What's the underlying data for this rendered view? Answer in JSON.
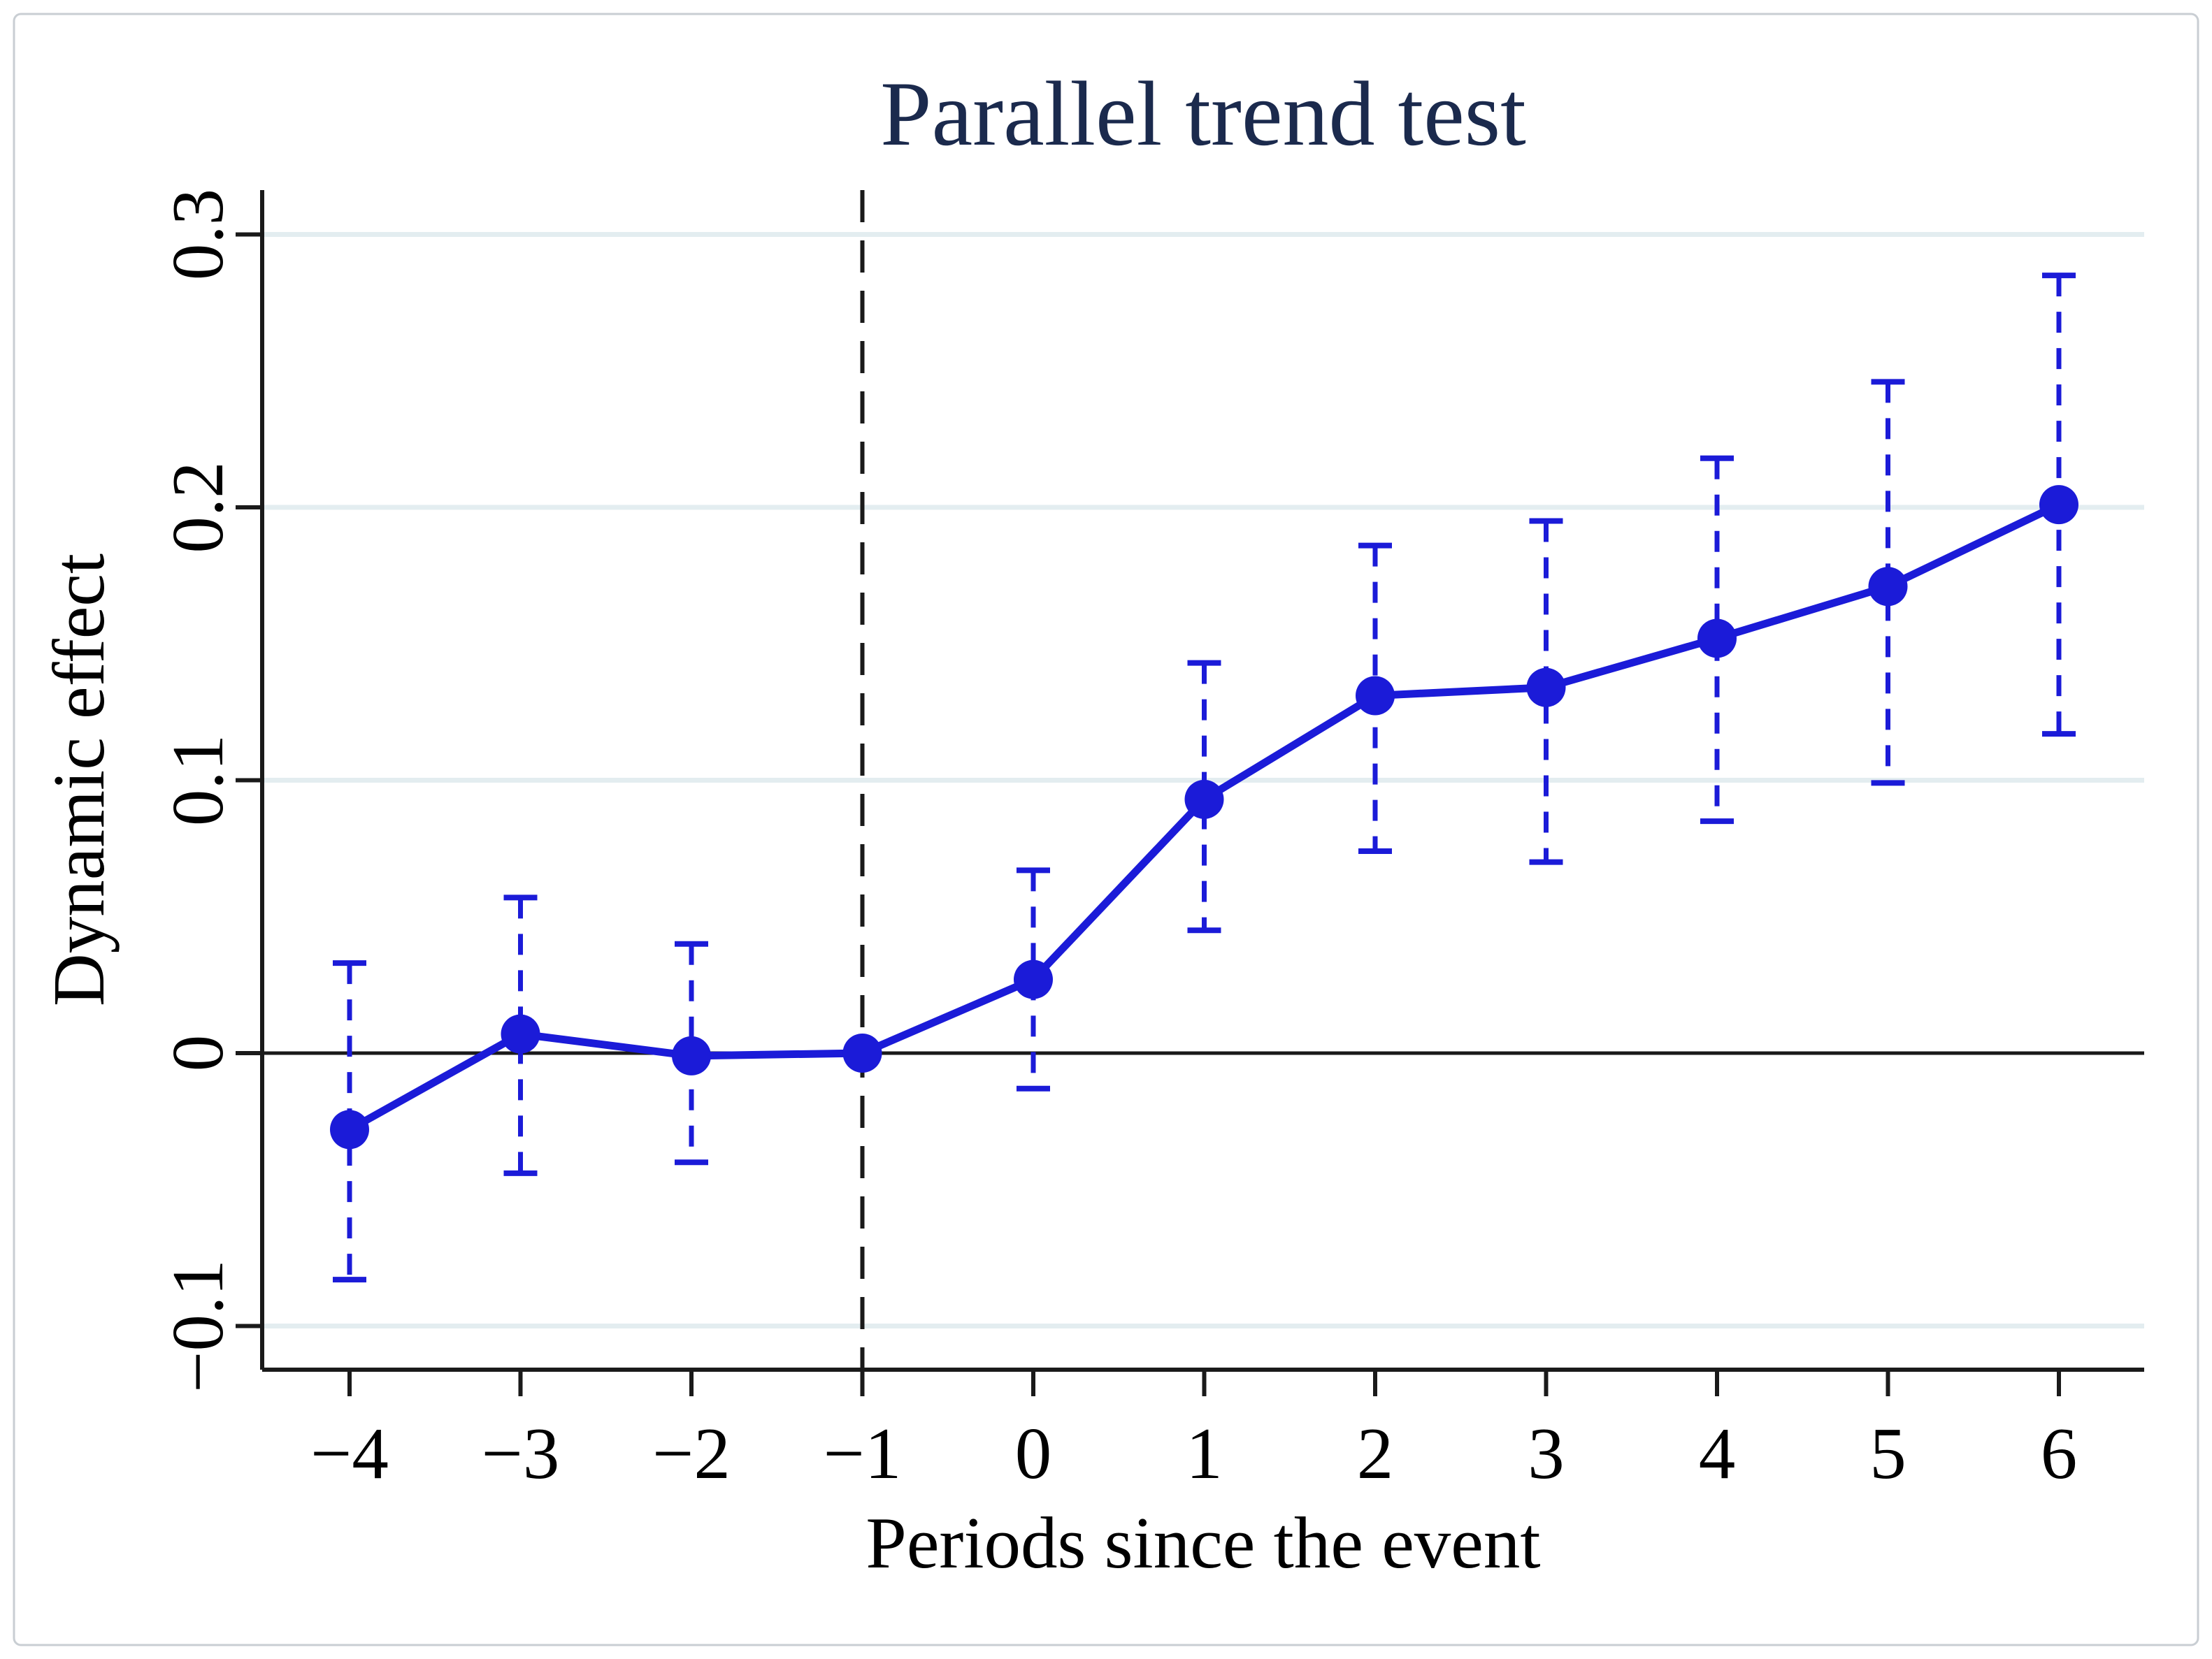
{
  "chart_data": {
    "type": "line",
    "title": "Parallel trend test",
    "xlabel": "Periods since the event",
    "ylabel": "Dynamic effect",
    "x": [
      -4,
      -3,
      -2,
      -1,
      0,
      1,
      2,
      3,
      4,
      5,
      6
    ],
    "x_tick_labels": [
      "−4",
      "−3",
      "−2",
      "−1",
      "0",
      "1",
      "2",
      "3",
      "4",
      "5",
      "6"
    ],
    "y_ticks": [
      {
        "value": 0.3,
        "label": "0.3"
      },
      {
        "value": 0.2,
        "label": "0.2"
      },
      {
        "value": 0.1,
        "label": "0.1"
      },
      {
        "value": 0,
        "label": "0"
      },
      {
        "value": -0.1,
        "label": "−0.1"
      }
    ],
    "ylim": [
      -0.116,
      0.316
    ],
    "xlim": [
      -4.5,
      6.5
    ],
    "grid": {
      "horizontal": true,
      "vertical": false
    },
    "legend": "none",
    "reference": {
      "hline_y": 0,
      "vline_x": -1,
      "vline_style": "dashed"
    },
    "series": [
      {
        "name": "Dynamic effect",
        "marker": "circle",
        "ci_style": "dashed-whisker-caps",
        "values": [
          -0.028,
          0.007,
          -0.001,
          0.0,
          0.027,
          0.093,
          0.131,
          0.134,
          0.152,
          0.171,
          0.201
        ],
        "ci_low": [
          -0.083,
          -0.044,
          -0.04,
          null,
          -0.013,
          0.045,
          0.074,
          0.07,
          0.085,
          0.099,
          0.117
        ],
        "ci_high": [
          0.033,
          0.057,
          0.04,
          null,
          0.067,
          0.143,
          0.186,
          0.195,
          0.218,
          0.246,
          0.285
        ]
      }
    ],
    "styles": {
      "line_color": "#1b1bd8",
      "marker_color": "#1b1bd8",
      "gridline_color": "#e3edf0",
      "axis_color": "#1a1a1a",
      "title_color": "#1b2a4d",
      "text_color": "#000000",
      "background_color": "#ffffff",
      "border_color": "#c9ced3"
    }
  }
}
